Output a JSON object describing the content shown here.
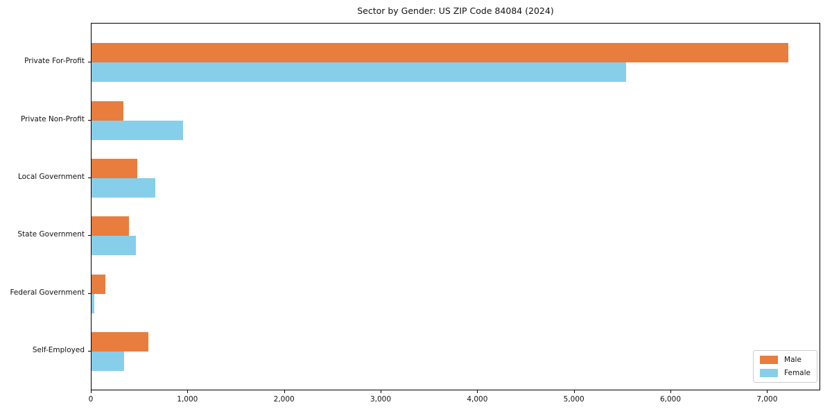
{
  "chart_data": {
    "type": "bar",
    "orientation": "horizontal",
    "title": "Sector by Gender: US ZIP Code 84084 (2024)",
    "categories": [
      "Private For-Profit",
      "Private Non-Profit",
      "Local Government",
      "State Government",
      "Federal Government",
      "Self-Employed"
    ],
    "series": [
      {
        "name": "Male",
        "color": "#e87d3e",
        "values": [
          7210,
          330,
          475,
          390,
          140,
          585
        ]
      },
      {
        "name": "Female",
        "color": "#87ceeb",
        "values": [
          5530,
          950,
          660,
          460,
          25,
          340
        ]
      }
    ],
    "xlabel": "",
    "ylabel": "",
    "xlim": [
      0,
      7550
    ],
    "x_ticks": [
      0,
      1000,
      2000,
      3000,
      4000,
      5000,
      6000,
      7000
    ],
    "x_tick_labels": [
      "0",
      "1,000",
      "2,000",
      "3,000",
      "4,000",
      "5,000",
      "6,000",
      "7,000"
    ],
    "grid": false,
    "legend": {
      "position": "lower right",
      "entries": [
        "Male",
        "Female"
      ]
    },
    "colors": {
      "background": "#ffffff",
      "axis": "#000000",
      "legend_border": "#cccccc"
    }
  }
}
